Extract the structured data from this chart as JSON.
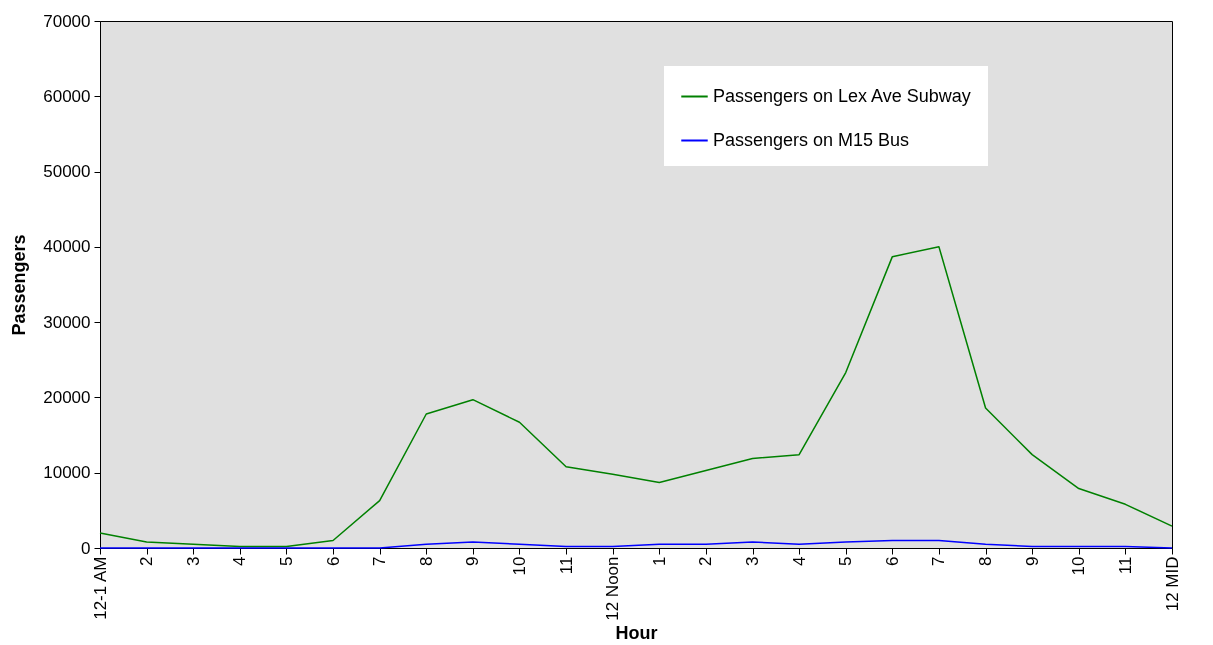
{
  "chart_data": {
    "type": "line",
    "xlabel": "Hour",
    "ylabel": "Passengers",
    "categories": [
      "12-1 AM",
      "2",
      "3",
      "4",
      "5",
      "6",
      "7",
      "8",
      "9",
      "10",
      "11",
      "12 Noon",
      "1",
      "2",
      "3",
      "4",
      "5",
      "6",
      "7",
      "8",
      "9",
      "10",
      "11",
      "12 MID"
    ],
    "series": [
      {
        "name": "Passengers on Lex Ave Subway",
        "color": "#008000",
        "values": [
          2000,
          800,
          500,
          200,
          200,
          1000,
          6300,
          17800,
          19700,
          16700,
          10800,
          9800,
          8700,
          10300,
          11900,
          12400,
          23300,
          38700,
          40000,
          18600,
          12400,
          7900,
          5800,
          2900
        ]
      },
      {
        "name": "Passengers on M15 Bus",
        "color": "#0000ff",
        "values": [
          0,
          0,
          0,
          0,
          0,
          0,
          0,
          500,
          800,
          500,
          200,
          200,
          500,
          500,
          800,
          500,
          800,
          1000,
          1000,
          500,
          200,
          200,
          200,
          0
        ]
      }
    ],
    "ylim": [
      0,
      70000
    ],
    "yticks": [
      0,
      10000,
      20000,
      30000,
      40000,
      50000,
      60000,
      70000
    ],
    "grid": false,
    "legend": "top right"
  }
}
